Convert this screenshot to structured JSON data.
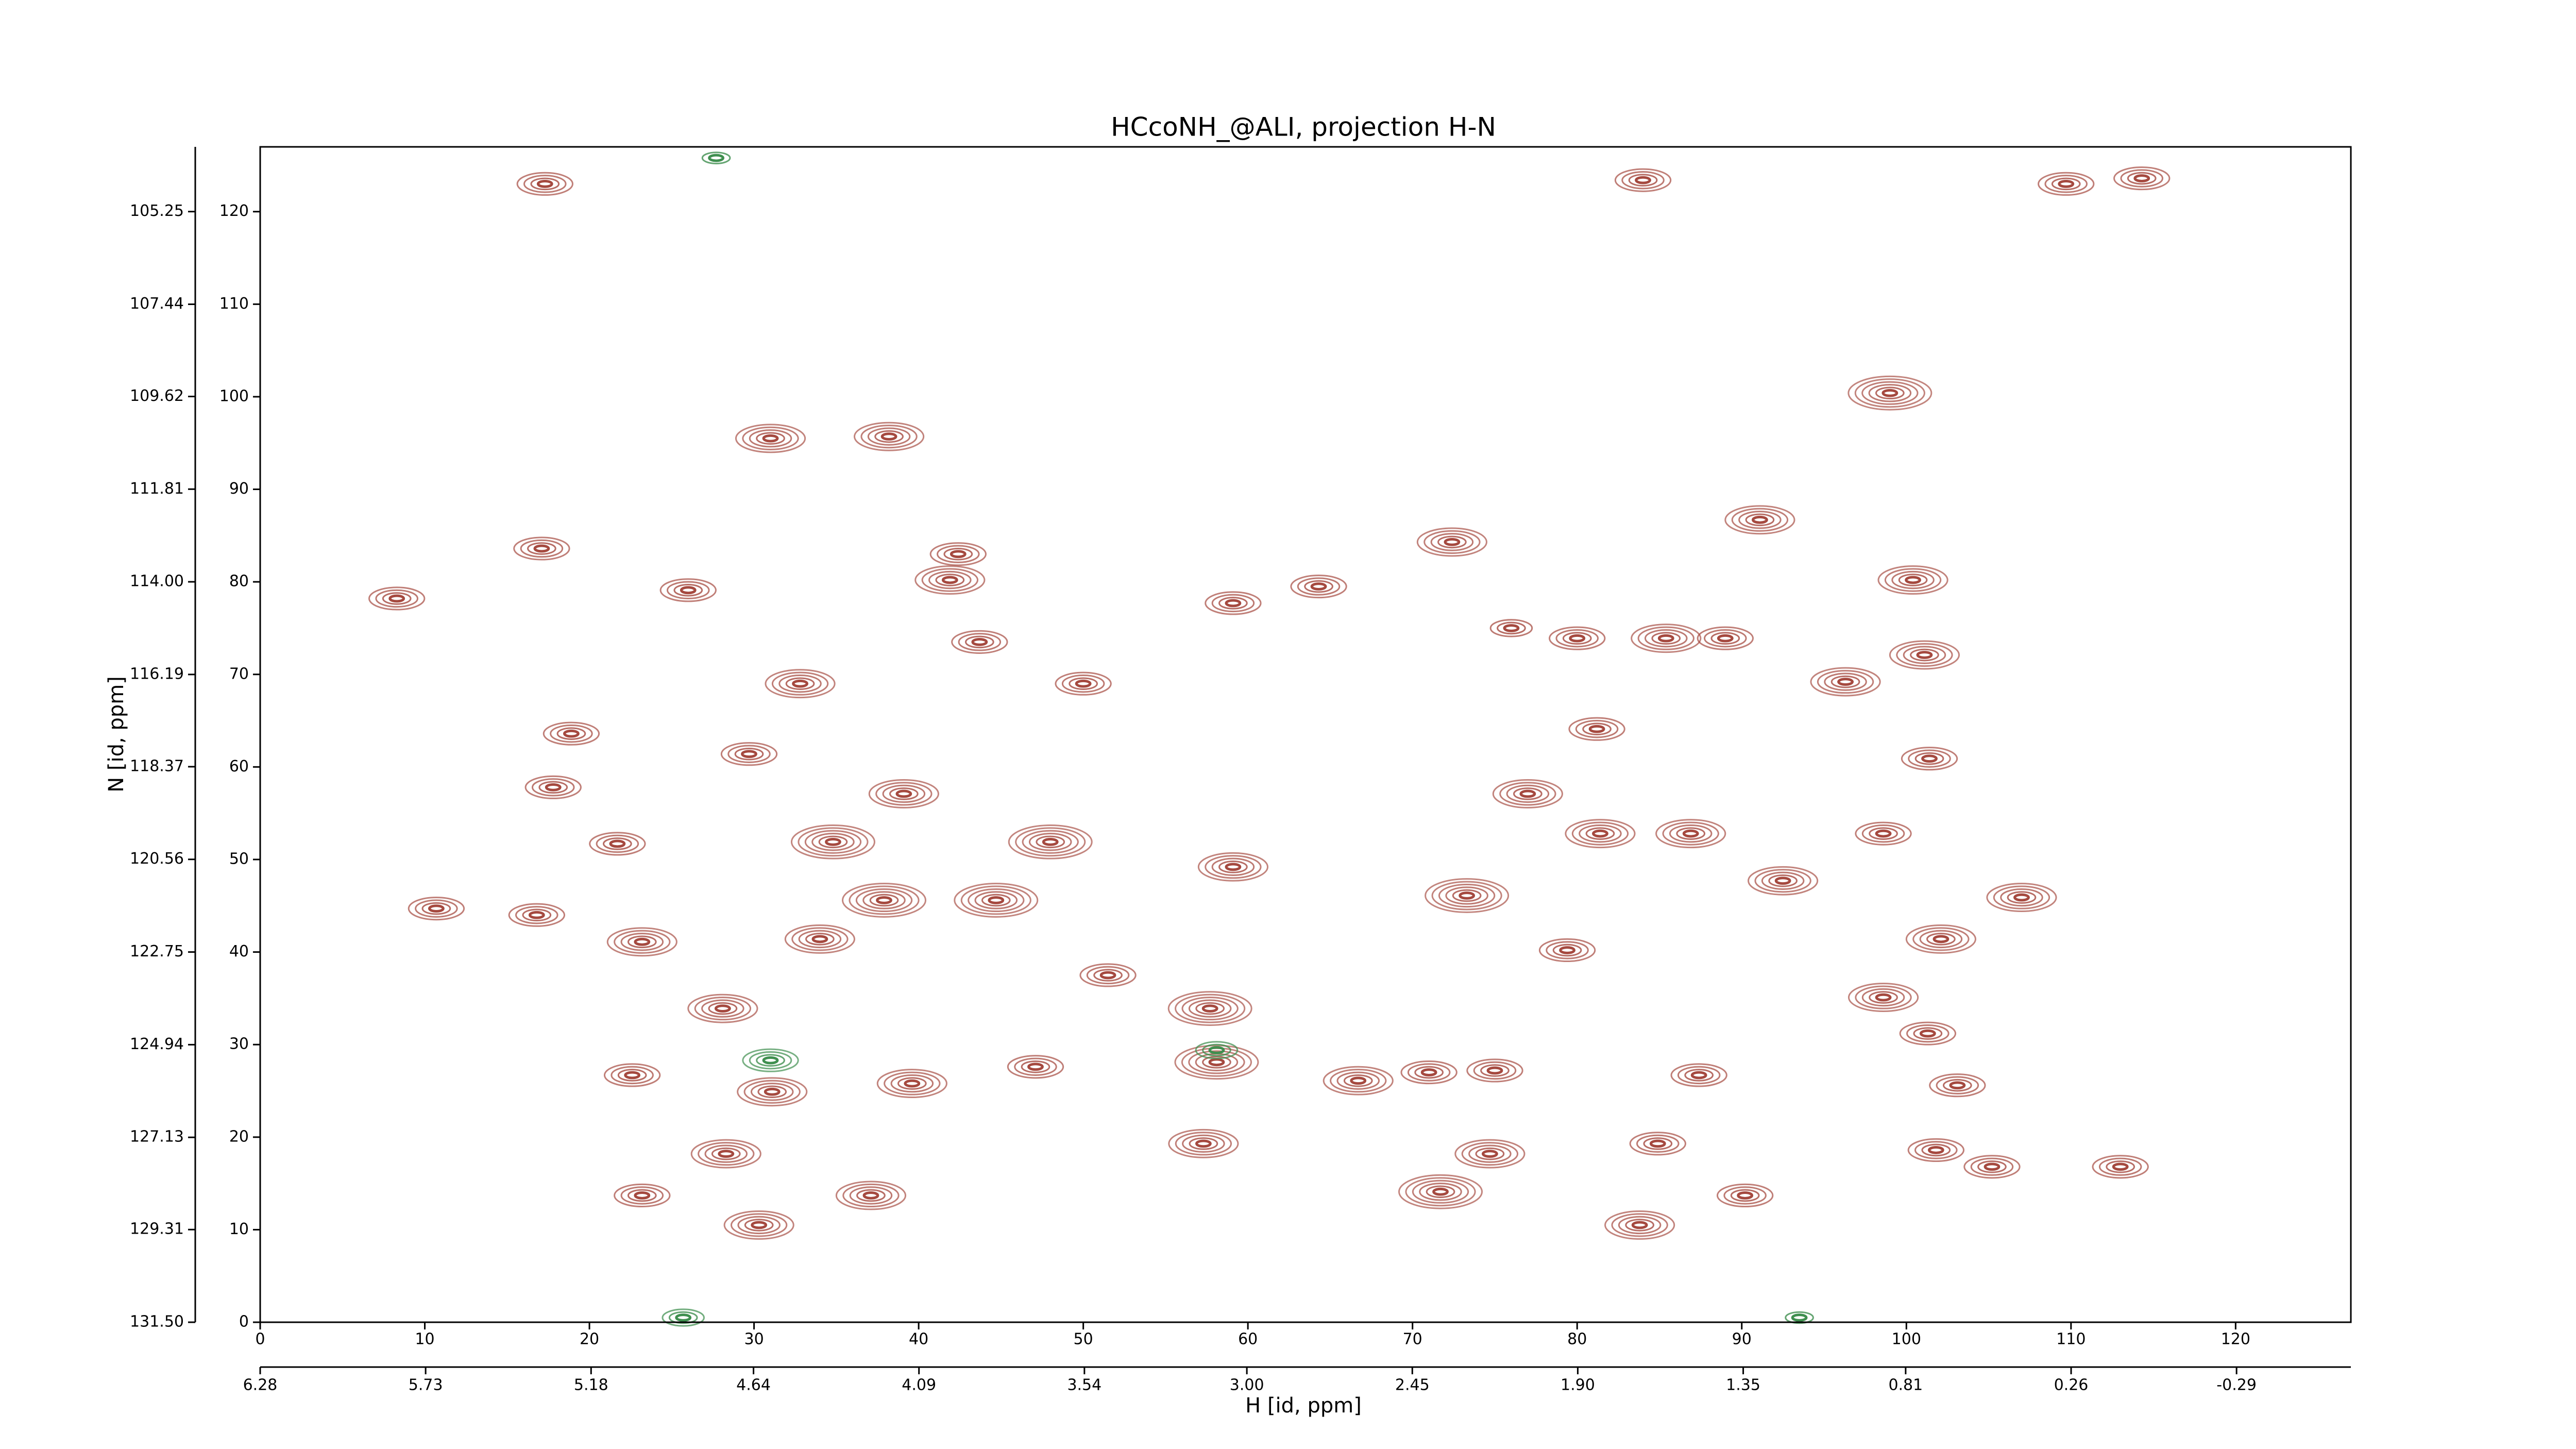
{
  "chart_data": {
    "type": "contour",
    "title": "HCcoNH_@ALI, projection H-N",
    "xlabel": "H [id, ppm]",
    "ylabel": "N [id, ppm]",
    "xlim": [
      0,
      127
    ],
    "ylim": [
      0,
      127
    ],
    "xticks": [
      0,
      10,
      20,
      30,
      40,
      50,
      60,
      70,
      80,
      90,
      100,
      110,
      120
    ],
    "yticks": [
      0,
      10,
      20,
      30,
      40,
      50,
      60,
      70,
      80,
      90,
      100,
      110,
      120
    ],
    "x2lim": [
      6.28,
      -0.67
    ],
    "x2ticks": [
      6.28,
      5.73,
      5.18,
      4.64,
      4.09,
      3.54,
      {
        "value": 3.0,
        "label": "3.00"
      },
      2.45,
      {
        "value": 1.9,
        "label": "1.90"
      },
      1.35,
      0.81,
      0.26,
      -0.29
    ],
    "y2lim": [
      131.5,
      103.72
    ],
    "y2ticks": [
      {
        "value": 131.5,
        "label": "131.50"
      },
      129.31,
      127.13,
      124.94,
      122.75,
      120.56,
      118.37,
      116.19,
      {
        "value": 114.0,
        "label": "114.00"
      },
      111.81,
      109.62,
      107.44,
      105.25
    ],
    "series": [
      {
        "color": "#a5493f",
        "x": [
          99,
          31,
          38.2,
          17.1,
          26,
          8.3,
          41.9,
          42.4,
          100.4,
          91.1,
          72.4,
          64.3,
          59.1,
          85.4,
          89,
          80,
          76,
          101.1,
          96.3,
          50,
          43.7,
          32.8,
          18.9,
          29.7,
          81.2,
          101.4,
          77,
          39.1,
          17.8,
          21.7,
          34.8,
          48,
          81.4,
          86.9,
          98.6,
          92.5,
          73.3,
          37.9,
          44.7,
          59.1,
          107,
          10.7,
          16.8,
          23.2,
          34,
          51.5,
          79.4,
          102.1,
          98.6,
          101.3,
          28.1,
          57.7,
          58.1,
          66.7,
          71,
          75,
          22.6,
          31.1,
          39.6,
          47.1,
          87.4,
          103.1,
          28.3,
          57.3,
          74.7,
          84.9,
          101.8,
          113,
          71.7,
          37.1,
          23.2,
          83.8,
          90.2,
          30.3,
          105.2,
          109.7,
          114.3,
          84,
          17.3
        ],
        "y": [
          100.4,
          95.5,
          95.7,
          83.6,
          79.1,
          78.2,
          80.2,
          83,
          80.2,
          86.7,
          84.3,
          79.5,
          77.7,
          73.9,
          73.9,
          73.9,
          75,
          72.1,
          69.2,
          69,
          73.5,
          69,
          63.6,
          61.4,
          64.1,
          60.9,
          57.1,
          57.1,
          57.8,
          51.7,
          51.9,
          51.9,
          52.8,
          52.8,
          52.8,
          47.7,
          46.1,
          45.6,
          45.6,
          49.2,
          45.9,
          44.7,
          44,
          41.1,
          41.4,
          37.5,
          40.2,
          41.4,
          35.1,
          31.2,
          33.9,
          33.9,
          28.1,
          26.1,
          27,
          27.2,
          26.7,
          24.9,
          25.8,
          27.6,
          26.7,
          25.6,
          18.2,
          19.3,
          18.2,
          19.3,
          18.6,
          16.8,
          14.1,
          13.7,
          13.7,
          10.5,
          13.7,
          10.5,
          16.8,
          123,
          123.6,
          123.4,
          123
        ],
        "levels": [
          6,
          5,
          5,
          4,
          4,
          4,
          5,
          4,
          5,
          5,
          5,
          4,
          4,
          5,
          4,
          4,
          3,
          5,
          5,
          4,
          4,
          5,
          4,
          4,
          4,
          4,
          5,
          5,
          4,
          4,
          6,
          6,
          5,
          5,
          4,
          5,
          6,
          6,
          6,
          5,
          5,
          4,
          4,
          5,
          5,
          4,
          4,
          5,
          5,
          4,
          5,
          6,
          6,
          5,
          4,
          4,
          4,
          5,
          5,
          4,
          4,
          4,
          5,
          5,
          5,
          4,
          4,
          4,
          6,
          5,
          4,
          5,
          4,
          5,
          4,
          4,
          4,
          4,
          4
        ]
      },
      {
        "color": "#3f8f4f",
        "x": [
          31,
          58.1,
          25.7,
          93.5,
          27.7
        ],
        "y": [
          28.3,
          29.4,
          0.5,
          0.5,
          125.8
        ],
        "levels": [
          4,
          3,
          3,
          2,
          2
        ]
      }
    ]
  }
}
